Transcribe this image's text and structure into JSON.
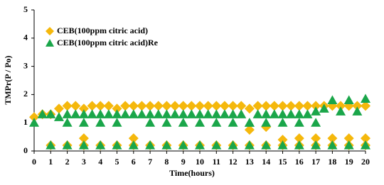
{
  "chart_data": {
    "type": "scatter",
    "xlabel": "Time(hours)",
    "ylabel": "TMPr(P / Po)",
    "xlim": [
      0,
      20
    ],
    "xticks": [
      0,
      1,
      2,
      3,
      4,
      5,
      6,
      7,
      8,
      9,
      10,
      11,
      12,
      13,
      14,
      15,
      16,
      17,
      18,
      19,
      20
    ],
    "ylim": [
      0,
      5
    ],
    "yticks": [
      0,
      1,
      2,
      3,
      4,
      5
    ],
    "legend": "upper-left",
    "series": [
      {
        "name": "CEB(100ppm citric acid)",
        "color": "#f5b80c",
        "marker": "diamond",
        "x": [
          0,
          0.5,
          1,
          1.5,
          2,
          2.5,
          3,
          3.5,
          4,
          4.5,
          5,
          5.5,
          6,
          6.5,
          7,
          7.5,
          8,
          8.5,
          9,
          9.5,
          10,
          10.5,
          11,
          11.5,
          12,
          12.5,
          13,
          13.5,
          14,
          14.5,
          15,
          15.5,
          16,
          16.5,
          17,
          17.5,
          18,
          18.5,
          19,
          19.5,
          20,
          1,
          2,
          3,
          4,
          5,
          6,
          7,
          8,
          9,
          10,
          11,
          12,
          13,
          14,
          15,
          16,
          17,
          18,
          19,
          20,
          3,
          6,
          13,
          14,
          15,
          16,
          17,
          18,
          19,
          20
        ],
        "y": [
          1.2,
          1.3,
          1.3,
          1.5,
          1.6,
          1.6,
          1.5,
          1.6,
          1.6,
          1.6,
          1.5,
          1.6,
          1.6,
          1.6,
          1.6,
          1.6,
          1.6,
          1.6,
          1.6,
          1.6,
          1.6,
          1.6,
          1.6,
          1.6,
          1.6,
          1.6,
          1.5,
          1.6,
          1.6,
          1.6,
          1.6,
          1.6,
          1.6,
          1.6,
          1.6,
          1.6,
          1.6,
          1.6,
          1.6,
          1.6,
          1.6,
          0.2,
          0.2,
          0.2,
          0.2,
          0.2,
          0.2,
          0.2,
          0.2,
          0.2,
          0.2,
          0.2,
          0.2,
          0.2,
          0.2,
          0.2,
          0.2,
          0.2,
          0.2,
          0.2,
          0.2,
          0.45,
          0.45,
          0.75,
          0.85,
          0.4,
          0.45,
          0.45,
          0.45,
          0.45,
          0.45
        ]
      },
      {
        "name": "CEB(100ppm citric acid)Re",
        "color": "#1aa64a",
        "marker": "triangle",
        "x": [
          0,
          0.5,
          1,
          1.5,
          2,
          2.5,
          3,
          3.5,
          4,
          4.5,
          5,
          5.5,
          6,
          6.5,
          7,
          7.5,
          8,
          8.5,
          9,
          9.5,
          10,
          10.5,
          11,
          11.5,
          12,
          12.5,
          13,
          13.5,
          14,
          14.5,
          15,
          15.5,
          16,
          16.5,
          17,
          17.5,
          18,
          18.5,
          19,
          19.5,
          20,
          1,
          2,
          3,
          4,
          5,
          6,
          7,
          8,
          9,
          10,
          11,
          12,
          13,
          14,
          15,
          16,
          17,
          18,
          19,
          20,
          2,
          3,
          4,
          5,
          7,
          8,
          9,
          10,
          11,
          12,
          13,
          14,
          15,
          16,
          17
        ],
        "y": [
          1.0,
          1.3,
          1.3,
          1.2,
          1.3,
          1.3,
          1.3,
          1.3,
          1.3,
          1.3,
          1.3,
          1.3,
          1.3,
          1.3,
          1.3,
          1.3,
          1.3,
          1.3,
          1.3,
          1.3,
          1.3,
          1.3,
          1.3,
          1.3,
          1.3,
          1.3,
          1.0,
          1.3,
          1.3,
          1.3,
          1.3,
          1.3,
          1.3,
          1.3,
          1.4,
          1.5,
          1.8,
          1.4,
          1.8,
          1.4,
          1.85,
          0.2,
          0.2,
          0.2,
          0.2,
          0.2,
          0.2,
          0.2,
          0.2,
          0.2,
          0.2,
          0.2,
          0.2,
          0.2,
          0.2,
          0.2,
          0.2,
          0.2,
          0.2,
          0.2,
          0.2,
          1.0,
          1.0,
          1.0,
          1.0,
          1.0,
          1.0,
          1.0,
          1.0,
          1.0,
          1.0,
          1.0,
          1.0,
          1.0,
          1.0,
          1.0
        ]
      }
    ]
  }
}
